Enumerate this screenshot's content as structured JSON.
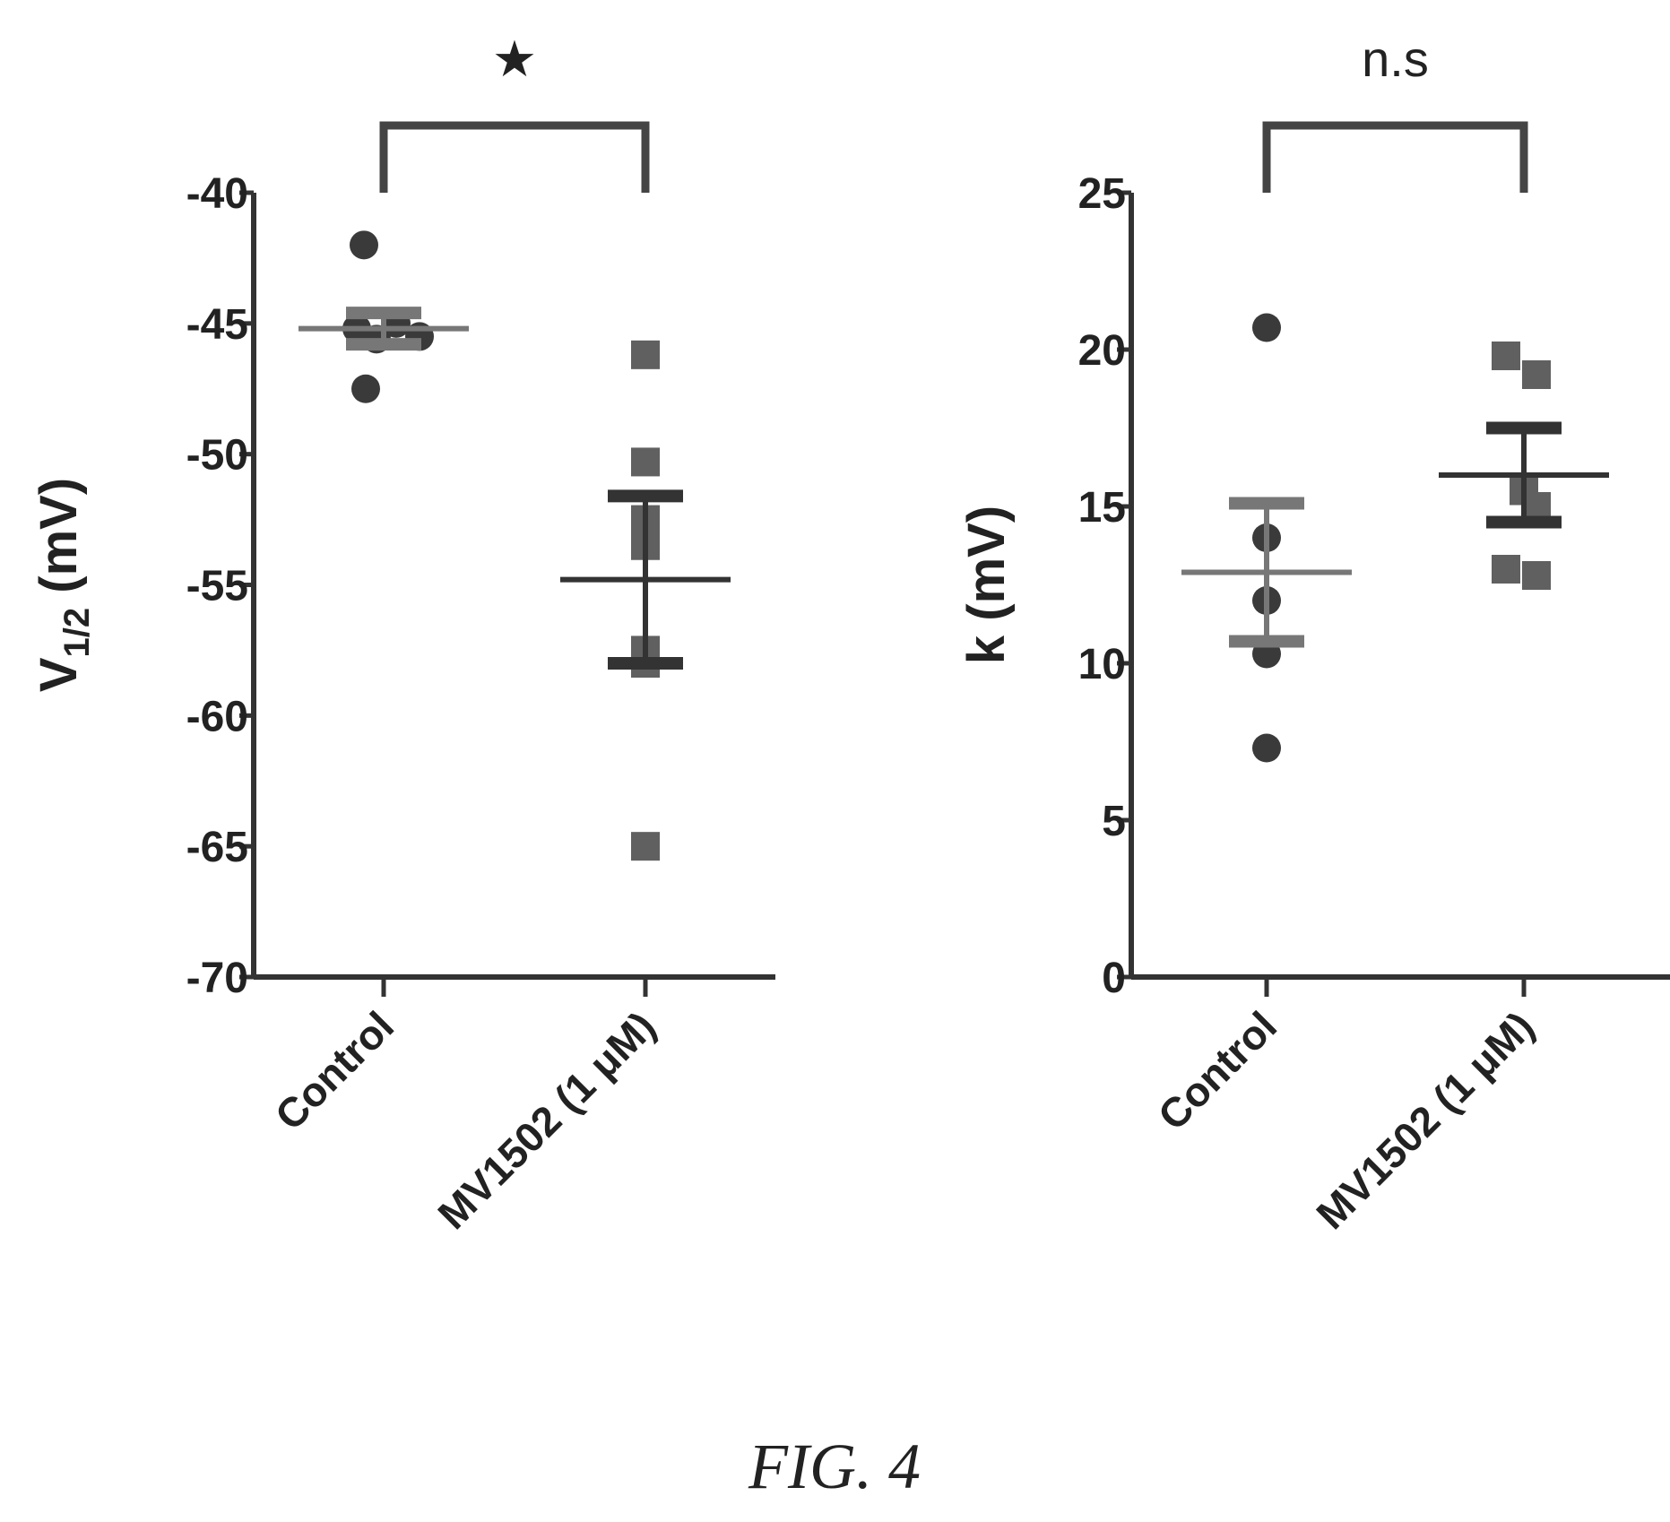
{
  "caption": "FIG. 4",
  "colors": {
    "control": "#3a3a3a",
    "mv1502": "#606060",
    "axis": "#333333",
    "mean_control": "#777777",
    "mean_mv1502": "#333333"
  },
  "chart_data": [
    {
      "type": "scatter",
      "ylabel_main": "V",
      "ylabel_sub": "1/2",
      "ylabel_unit": " (mV)",
      "categories": [
        "Control",
        "MV1502 (1 μM)"
      ],
      "ylim": [
        -70,
        -40
      ],
      "yticks": [
        -40,
        -45,
        -50,
        -55,
        -60,
        -65,
        -70
      ],
      "significance": "★",
      "series": [
        {
          "category": "Control",
          "marker": "circle",
          "values": [
            -42,
            -45,
            -45.2,
            -45.5,
            -45.6,
            -47.5
          ],
          "mean": -45.2,
          "sem": 0.6
        },
        {
          "category": "MV1502 (1 μM)",
          "marker": "square",
          "values": [
            -46.2,
            -50.3,
            -52.5,
            -53.5,
            -57.5,
            -58,
            -65
          ],
          "mean": -54.8,
          "sem": 3.2
        }
      ]
    },
    {
      "type": "scatter",
      "ylabel_main": "k",
      "ylabel_sub": "",
      "ylabel_unit": " (mV)",
      "categories": [
        "Control",
        "MV1502 (1 μM)"
      ],
      "ylim": [
        0,
        25
      ],
      "yticks": [
        25,
        20,
        15,
        10,
        5,
        0
      ],
      "significance": "n.s",
      "series": [
        {
          "category": "Control",
          "marker": "circle",
          "values": [
            20.7,
            14,
            12,
            10.3,
            7.3
          ],
          "mean": 12.9,
          "sem": 2.2
        },
        {
          "category": "MV1502 (1 μM)",
          "marker": "square",
          "values": [
            19.8,
            19.2,
            15.5,
            15,
            13,
            12.8
          ],
          "mean": 16,
          "sem": 1.5
        }
      ]
    }
  ]
}
